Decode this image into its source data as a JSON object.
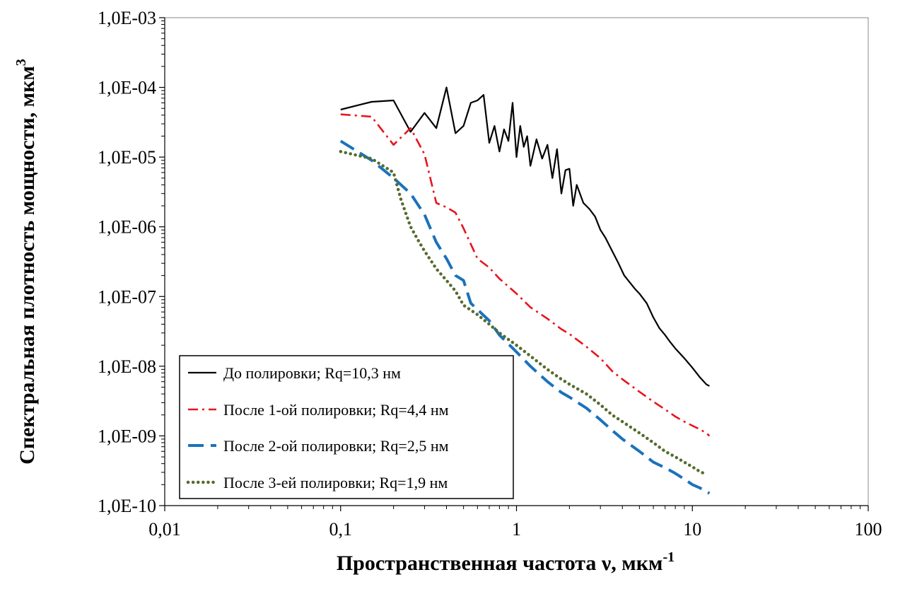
{
  "chart_data": {
    "type": "line",
    "title": "",
    "xlabel": "Пространственная частота ν, мкм",
    "xlabel_sup": "-1",
    "ylabel": "Спектральная плотность мощности, мкм",
    "ylabel_sup": "3",
    "xscale": "log",
    "yscale": "log",
    "xlim": [
      0.01,
      100
    ],
    "ylim": [
      1e-10,
      0.001
    ],
    "grid": false,
    "legend_position": "bottom-left",
    "x_ticks": [
      {
        "value": 0.01,
        "label": "0,01"
      },
      {
        "value": 0.1,
        "label": "0,1"
      },
      {
        "value": 1,
        "label": "1"
      },
      {
        "value": 10,
        "label": "10"
      },
      {
        "value": 100,
        "label": "100"
      }
    ],
    "y_ticks": [
      {
        "value": 0.001,
        "label": "1,0E-03"
      },
      {
        "value": 0.0001,
        "label": "1,0E-04"
      },
      {
        "value": 1e-05,
        "label": "1,0E-05"
      },
      {
        "value": 1e-06,
        "label": "1,0E-06"
      },
      {
        "value": 1e-07,
        "label": "1,0E-07"
      },
      {
        "value": 1e-08,
        "label": "1,0E-08"
      },
      {
        "value": 1e-09,
        "label": "1,0E-09"
      },
      {
        "value": 1e-10,
        "label": "1,0E-10"
      }
    ],
    "series": [
      {
        "name": "До полировки; Rq=10,3 нм",
        "color": "#000000",
        "style": "solid",
        "x": [
          0.1,
          0.15,
          0.2,
          0.25,
          0.3,
          0.35,
          0.4,
          0.45,
          0.5,
          0.55,
          0.6,
          0.65,
          0.7,
          0.75,
          0.8,
          0.85,
          0.9,
          0.95,
          1.0,
          1.05,
          1.1,
          1.15,
          1.2,
          1.3,
          1.4,
          1.5,
          1.6,
          1.7,
          1.8,
          1.9,
          2.0,
          2.1,
          2.2,
          2.4,
          2.6,
          2.8,
          3.0,
          3.2,
          3.5,
          3.8,
          4.1,
          4.4,
          4.7,
          5.0,
          5.5,
          6.0,
          6.5,
          7.0,
          7.5,
          8.0,
          9.0,
          10.0,
          11.0,
          12.0,
          12.5
        ],
        "y": [
          4.8e-05,
          6.2e-05,
          6.5e-05,
          2.3e-05,
          4.3e-05,
          2.6e-05,
          0.0001,
          2.2e-05,
          2.8e-05,
          6e-05,
          6.5e-05,
          7.8e-05,
          1.6e-05,
          2.8e-05,
          1.2e-05,
          2.5e-05,
          1.7e-05,
          6e-05,
          1e-05,
          2.8e-05,
          1.4e-05,
          2e-05,
          7.5e-06,
          1.8e-05,
          9.5e-06,
          1.5e-05,
          5e-06,
          1.3e-05,
          3e-06,
          6.5e-06,
          6.8e-06,
          2e-06,
          4e-06,
          2.2e-06,
          1.8e-06,
          1.4e-06,
          9e-07,
          7e-07,
          4.5e-07,
          3e-07,
          2e-07,
          1.6e-07,
          1.3e-07,
          1.1e-07,
          8e-08,
          5e-08,
          3.5e-08,
          2.8e-08,
          2.2e-08,
          1.8e-08,
          1.3e-08,
          9.5e-09,
          7e-09,
          5.5e-09,
          5.2e-09
        ]
      },
      {
        "name": "После 1-ой полировки; Rq=4,4 нм",
        "color": "#e8141e",
        "style": "dashdot",
        "x": [
          0.1,
          0.15,
          0.2,
          0.25,
          0.3,
          0.35,
          0.4,
          0.45,
          0.5,
          0.6,
          0.7,
          0.8,
          1.0,
          1.2,
          1.5,
          1.8,
          2.0,
          2.5,
          3.0,
          3.5,
          4.0,
          5.0,
          6.0,
          7.0,
          8.0,
          9.0,
          10.0,
          11.0,
          12.0,
          12.5
        ],
        "y": [
          4.1e-05,
          3.8e-05,
          1.5e-05,
          2.6e-05,
          1.1e-05,
          2.2e-06,
          1.9e-06,
          1.6e-06,
          9.5e-07,
          3.5e-07,
          2.6e-07,
          1.8e-07,
          1.1e-07,
          7e-08,
          4.8e-08,
          3.4e-08,
          2.9e-08,
          1.9e-08,
          1.3e-08,
          8.5e-09,
          6.5e-09,
          4.3e-09,
          3.1e-09,
          2.4e-09,
          1.9e-09,
          1.6e-09,
          1.4e-09,
          1.25e-09,
          1.1e-09,
          1e-09
        ]
      },
      {
        "name": "После 2-ой полировки; Rq=2,5 нм",
        "color": "#1a72bb",
        "style": "dashed",
        "x": [
          0.1,
          0.15,
          0.2,
          0.25,
          0.3,
          0.35,
          0.4,
          0.45,
          0.5,
          0.55,
          0.6,
          0.7,
          0.8,
          1.0,
          1.2,
          1.5,
          1.8,
          2.0,
          2.5,
          3.0,
          3.5,
          4.0,
          5.0,
          5.5,
          6.0,
          7.0,
          8.0,
          9.0,
          10.0,
          11.0,
          12.0,
          12.5
        ],
        "y": [
          1.7e-05,
          9e-06,
          5e-06,
          3e-06,
          1.5e-06,
          6e-07,
          3.5e-07,
          2e-07,
          1.7e-07,
          8e-08,
          6.5e-08,
          4.5e-08,
          2.8e-08,
          1.6e-08,
          1e-08,
          6e-09,
          4.2e-09,
          3.6e-09,
          2.5e-09,
          1.7e-09,
          1.2e-09,
          9e-10,
          6e-10,
          5e-10,
          4.2e-10,
          3.5e-10,
          2.9e-10,
          2.4e-10,
          2e-10,
          1.8e-10,
          1.6e-10,
          1.5e-10
        ]
      },
      {
        "name": "После 3-ей полировки; Rq=1,9 нм",
        "color": "#556b2f",
        "style": "dotted",
        "x": [
          0.1,
          0.15,
          0.2,
          0.22,
          0.25,
          0.28,
          0.3,
          0.35,
          0.4,
          0.45,
          0.5,
          0.6,
          0.7,
          0.8,
          1.0,
          1.2,
          1.5,
          1.8,
          2.0,
          2.5,
          3.0,
          3.5,
          4.0,
          5.0,
          6.0,
          7.0,
          8.0,
          9.0,
          10.0,
          11.0,
          12.0
        ],
        "y": [
          1.2e-05,
          9.5e-06,
          6e-06,
          2.5e-06,
          1e-06,
          6e-07,
          4.5e-07,
          2.5e-07,
          1.7e-07,
          1.2e-07,
          7.5e-08,
          5.5e-08,
          4e-08,
          3e-08,
          2e-08,
          1.4e-08,
          9e-09,
          6.5e-09,
          5.5e-09,
          4e-09,
          2.8e-09,
          2e-09,
          1.6e-09,
          1.1e-09,
          8e-10,
          6e-10,
          5e-10,
          4.2e-10,
          3.6e-10,
          3.1e-10,
          2.8e-10
        ]
      }
    ]
  }
}
